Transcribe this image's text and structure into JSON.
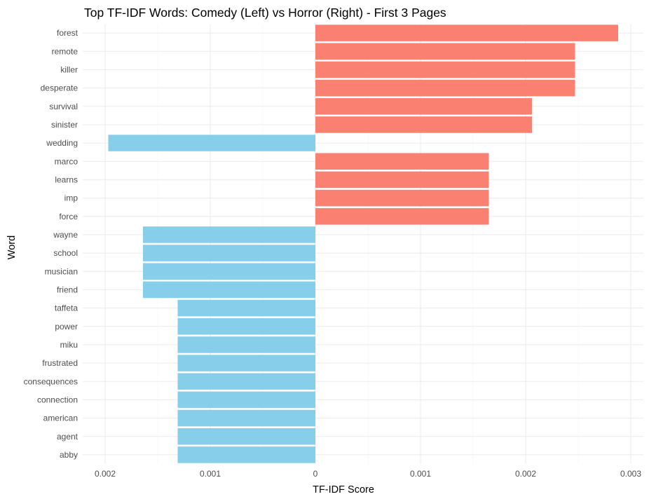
{
  "chart_data": {
    "type": "bar",
    "orientation": "horizontal",
    "title": "Top TF-IDF Words: Comedy (Left) vs Horror (Right) - First 3 Pages",
    "xlabel": "TF-IDF Score",
    "ylabel": "Word",
    "xlim": [
      -0.0022,
      0.0031
    ],
    "x_ticks": [
      -0.002,
      -0.001,
      0,
      0.001,
      0.002,
      0.003
    ],
    "x_tick_labels": [
      "0.002",
      "0.001",
      "0",
      "0.001",
      "0.002",
      "0.003"
    ],
    "grid": true,
    "legend": "none",
    "colors": {
      "comedy": "#87CEEB",
      "horror": "#FA8072"
    },
    "bars": [
      {
        "word": "forest",
        "value": 0.00288,
        "group": "horror"
      },
      {
        "word": "remote",
        "value": 0.00247,
        "group": "horror"
      },
      {
        "word": "killer",
        "value": 0.00247,
        "group": "horror"
      },
      {
        "word": "desperate",
        "value": 0.00247,
        "group": "horror"
      },
      {
        "word": "survival",
        "value": 0.00206,
        "group": "horror"
      },
      {
        "word": "sinister",
        "value": 0.00206,
        "group": "horror"
      },
      {
        "word": "wedding",
        "value": -0.00197,
        "group": "comedy"
      },
      {
        "word": "marco",
        "value": 0.00165,
        "group": "horror"
      },
      {
        "word": "learns",
        "value": 0.00165,
        "group": "horror"
      },
      {
        "word": "imp",
        "value": 0.00165,
        "group": "horror"
      },
      {
        "word": "force",
        "value": 0.00165,
        "group": "horror"
      },
      {
        "word": "wayne",
        "value": -0.00164,
        "group": "comedy"
      },
      {
        "word": "school",
        "value": -0.00164,
        "group": "comedy"
      },
      {
        "word": "musician",
        "value": -0.00164,
        "group": "comedy"
      },
      {
        "word": "friend",
        "value": -0.00164,
        "group": "comedy"
      },
      {
        "word": "taffeta",
        "value": -0.00131,
        "group": "comedy"
      },
      {
        "word": "power",
        "value": -0.00131,
        "group": "comedy"
      },
      {
        "word": "miku",
        "value": -0.00131,
        "group": "comedy"
      },
      {
        "word": "frustrated",
        "value": -0.00131,
        "group": "comedy"
      },
      {
        "word": "consequences",
        "value": -0.00131,
        "group": "comedy"
      },
      {
        "word": "connection",
        "value": -0.00131,
        "group": "comedy"
      },
      {
        "word": "american",
        "value": -0.00131,
        "group": "comedy"
      },
      {
        "word": "agent",
        "value": -0.00131,
        "group": "comedy"
      },
      {
        "word": "abby",
        "value": -0.00131,
        "group": "comedy"
      }
    ]
  }
}
